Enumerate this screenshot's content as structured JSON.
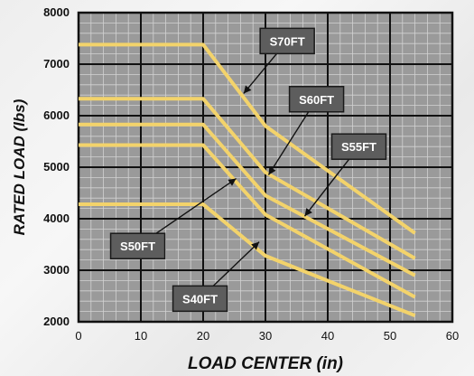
{
  "chart_data": {
    "type": "line",
    "title": "",
    "xlabel": "LOAD CENTER (in)",
    "ylabel": "RATED LOAD (lbs)",
    "xlim": [
      0,
      60
    ],
    "ylim": [
      2000,
      8000
    ],
    "x_ticks": [
      "0",
      "10",
      "20",
      "30",
      "40",
      "50",
      "60"
    ],
    "y_ticks": [
      "2000",
      "3000",
      "4000",
      "5000",
      "6000",
      "7000",
      "8000"
    ],
    "grid": true,
    "line_color": "#f3d36b",
    "plot_background": "#9a9a9a",
    "label_box_color": "#5d5d5d",
    "series": [
      {
        "name": "S70FT",
        "x": [
          0,
          20,
          30,
          54
        ],
        "y": [
          7380,
          7380,
          5800,
          3720
        ]
      },
      {
        "name": "S60FT",
        "x": [
          0,
          20,
          30,
          54
        ],
        "y": [
          6330,
          6330,
          4900,
          3230
        ]
      },
      {
        "name": "S55FT",
        "x": [
          0,
          20,
          30,
          54
        ],
        "y": [
          5830,
          5830,
          4450,
          2900
        ]
      },
      {
        "name": "S50FT",
        "x": [
          0,
          20,
          30,
          54
        ],
        "y": [
          5430,
          5430,
          4080,
          2480
        ]
      },
      {
        "name": "S40FT",
        "x": [
          0,
          20,
          30,
          54
        ],
        "y": [
          4280,
          4280,
          3280,
          2120
        ]
      }
    ],
    "annotations": [
      {
        "text": "S70FT",
        "series": "S70FT",
        "box_at": [
          33.5,
          7450
        ],
        "arrow_to": [
          26.5,
          6430
        ]
      },
      {
        "text": "S60FT",
        "series": "S60FT",
        "box_at": [
          38.2,
          6320
        ],
        "arrow_to": [
          30.5,
          4850
        ]
      },
      {
        "text": "S55FT",
        "series": "S55FT",
        "box_at": [
          45.0,
          5400
        ],
        "arrow_to": [
          36.3,
          4050
        ]
      },
      {
        "text": "S50FT",
        "series": "S50FT",
        "box_at": [
          9.5,
          3470
        ],
        "arrow_to": [
          25.3,
          4780
        ]
      },
      {
        "text": "S40FT",
        "series": "S40FT",
        "box_at": [
          19.5,
          2450
        ],
        "arrow_to": [
          29.0,
          3550
        ]
      }
    ]
  }
}
